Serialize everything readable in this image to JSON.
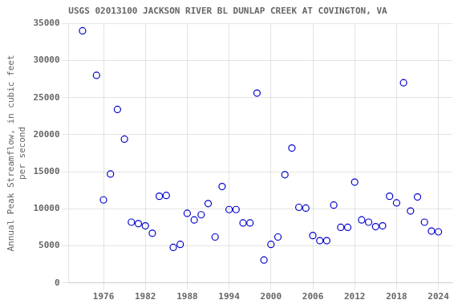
{
  "chart_data": {
    "type": "scatter",
    "title": "USGS 02013100 JACKSON RIVER BL DUNLAP CREEK AT COVINGTON, VA",
    "ylabel": "Annual Peak Streamflow, in cubic feet\nper second",
    "x": [
      1973,
      1975,
      1976,
      1977,
      1978,
      1979,
      1980,
      1981,
      1982,
      1983,
      1984,
      1985,
      1986,
      1987,
      1988,
      1989,
      1990,
      1991,
      1992,
      1993,
      1994,
      1995,
      1996,
      1997,
      1998,
      1999,
      2000,
      2001,
      2002,
      2003,
      2004,
      2005,
      2006,
      2007,
      2008,
      2009,
      2010,
      2011,
      2012,
      2013,
      2014,
      2015,
      2016,
      2017,
      2018,
      2019,
      2020,
      2021,
      2022,
      2023,
      2024
    ],
    "values": [
      34000,
      28000,
      11200,
      14700,
      23400,
      19400,
      8200,
      8000,
      7700,
      6700,
      11700,
      11800,
      4800,
      5200,
      9400,
      8500,
      9200,
      10700,
      6200,
      13000,
      9900,
      9900,
      8100,
      8100,
      25600,
      3100,
      5200,
      6200,
      14600,
      18200,
      10200,
      10100,
      6400,
      5700,
      5700,
      10500,
      7500,
      7500,
      13600,
      8500,
      8200,
      7600,
      7700,
      11700,
      10800,
      27000,
      9700,
      11600,
      8200,
      7000,
      6900
    ],
    "color": "#0000CC",
    "marker": "circle",
    "xlim": [
      1971,
      2026
    ],
    "ylim": [
      0,
      35000
    ],
    "xticks": [
      1976,
      1982,
      1988,
      1994,
      2000,
      2006,
      2012,
      2018,
      2024
    ],
    "yticks": [
      0,
      5000,
      10000,
      15000,
      20000,
      25000,
      30000,
      35000
    ],
    "grid": true
  }
}
